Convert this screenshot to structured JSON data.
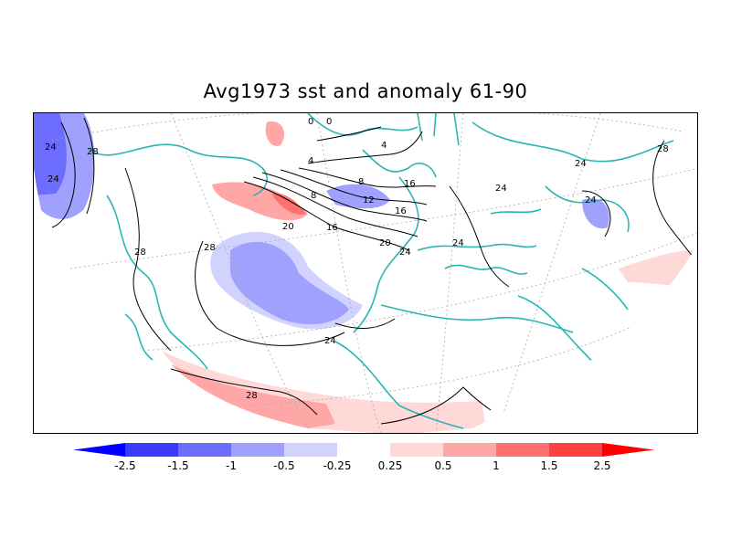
{
  "title": "Avg1973 sst and anomaly 61-90",
  "colorbar": {
    "labels": [
      "-2.5",
      "-1.5",
      "-1",
      "-0.5",
      "-0.25",
      "0.25",
      "0.5",
      "1",
      "1.5",
      "2.5"
    ],
    "colors": [
      "#0000ff",
      "#3a3aff",
      "#6c6cff",
      "#a0a0ff",
      "#d2d2ff",
      "#ffffff",
      "#ffd8d8",
      "#ffa6a6",
      "#ff7070",
      "#ff4040",
      "#ff0000"
    ]
  },
  "contour_labels": [
    "24",
    "28",
    "28",
    "28",
    "24",
    "28",
    "8",
    "12",
    "16",
    "20",
    "16",
    "20",
    "24",
    "24",
    "24",
    "28",
    "8",
    "4",
    "4",
    "16",
    "0",
    "0",
    "24",
    "24",
    "24"
  ],
  "colors": {
    "coast": "#2ab5b5",
    "contour": "#000000",
    "grid": "#999999",
    "frame": "#000000"
  }
}
